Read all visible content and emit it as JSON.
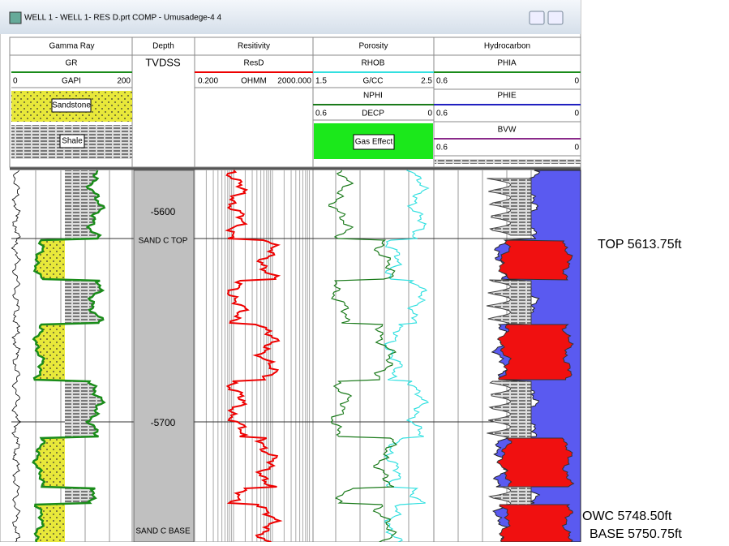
{
  "window": {
    "title": "WELL 1 - WELL 1- RES D.prt  COMP - Umusadege-4 4"
  },
  "tracks": {
    "gamma": {
      "name": "Gamma Ray",
      "curve": "GR",
      "unit": "GAPI",
      "min": "0",
      "max": "200",
      "fills": [
        "Sandstone",
        "Shale"
      ]
    },
    "depth": {
      "name": "Depth",
      "curve": "TVDSS"
    },
    "resistivity": {
      "name": "Resitivity",
      "curve": "ResD",
      "unit": "OHMM",
      "min": "0.200",
      "max": "2000.000"
    },
    "porosity": {
      "name": "Porosity",
      "curves": [
        {
          "name": "RHOB",
          "unit": "G/CC",
          "min": "1.5",
          "max": "2.5"
        },
        {
          "name": "NPHI",
          "unit": "DECP",
          "min": "0.6",
          "max": "0"
        }
      ],
      "fill": "Gas Effect"
    },
    "hydrocarbon": {
      "name": "Hydrocarbon",
      "curves": [
        {
          "name": "PHIA",
          "min": "0.6",
          "max": "0"
        },
        {
          "name": "PHIE",
          "min": "0.6",
          "max": "0"
        },
        {
          "name": "BVW",
          "min": "0.6",
          "max": "0"
        }
      ]
    }
  },
  "depth_labels": [
    "-5600",
    "SAND C TOP",
    "-5700",
    "SAND C BASE"
  ],
  "annotations": [
    "TOP 5613.75ft",
    "OWC 5748.50ft",
    "BASE 5750.75ft"
  ]
}
